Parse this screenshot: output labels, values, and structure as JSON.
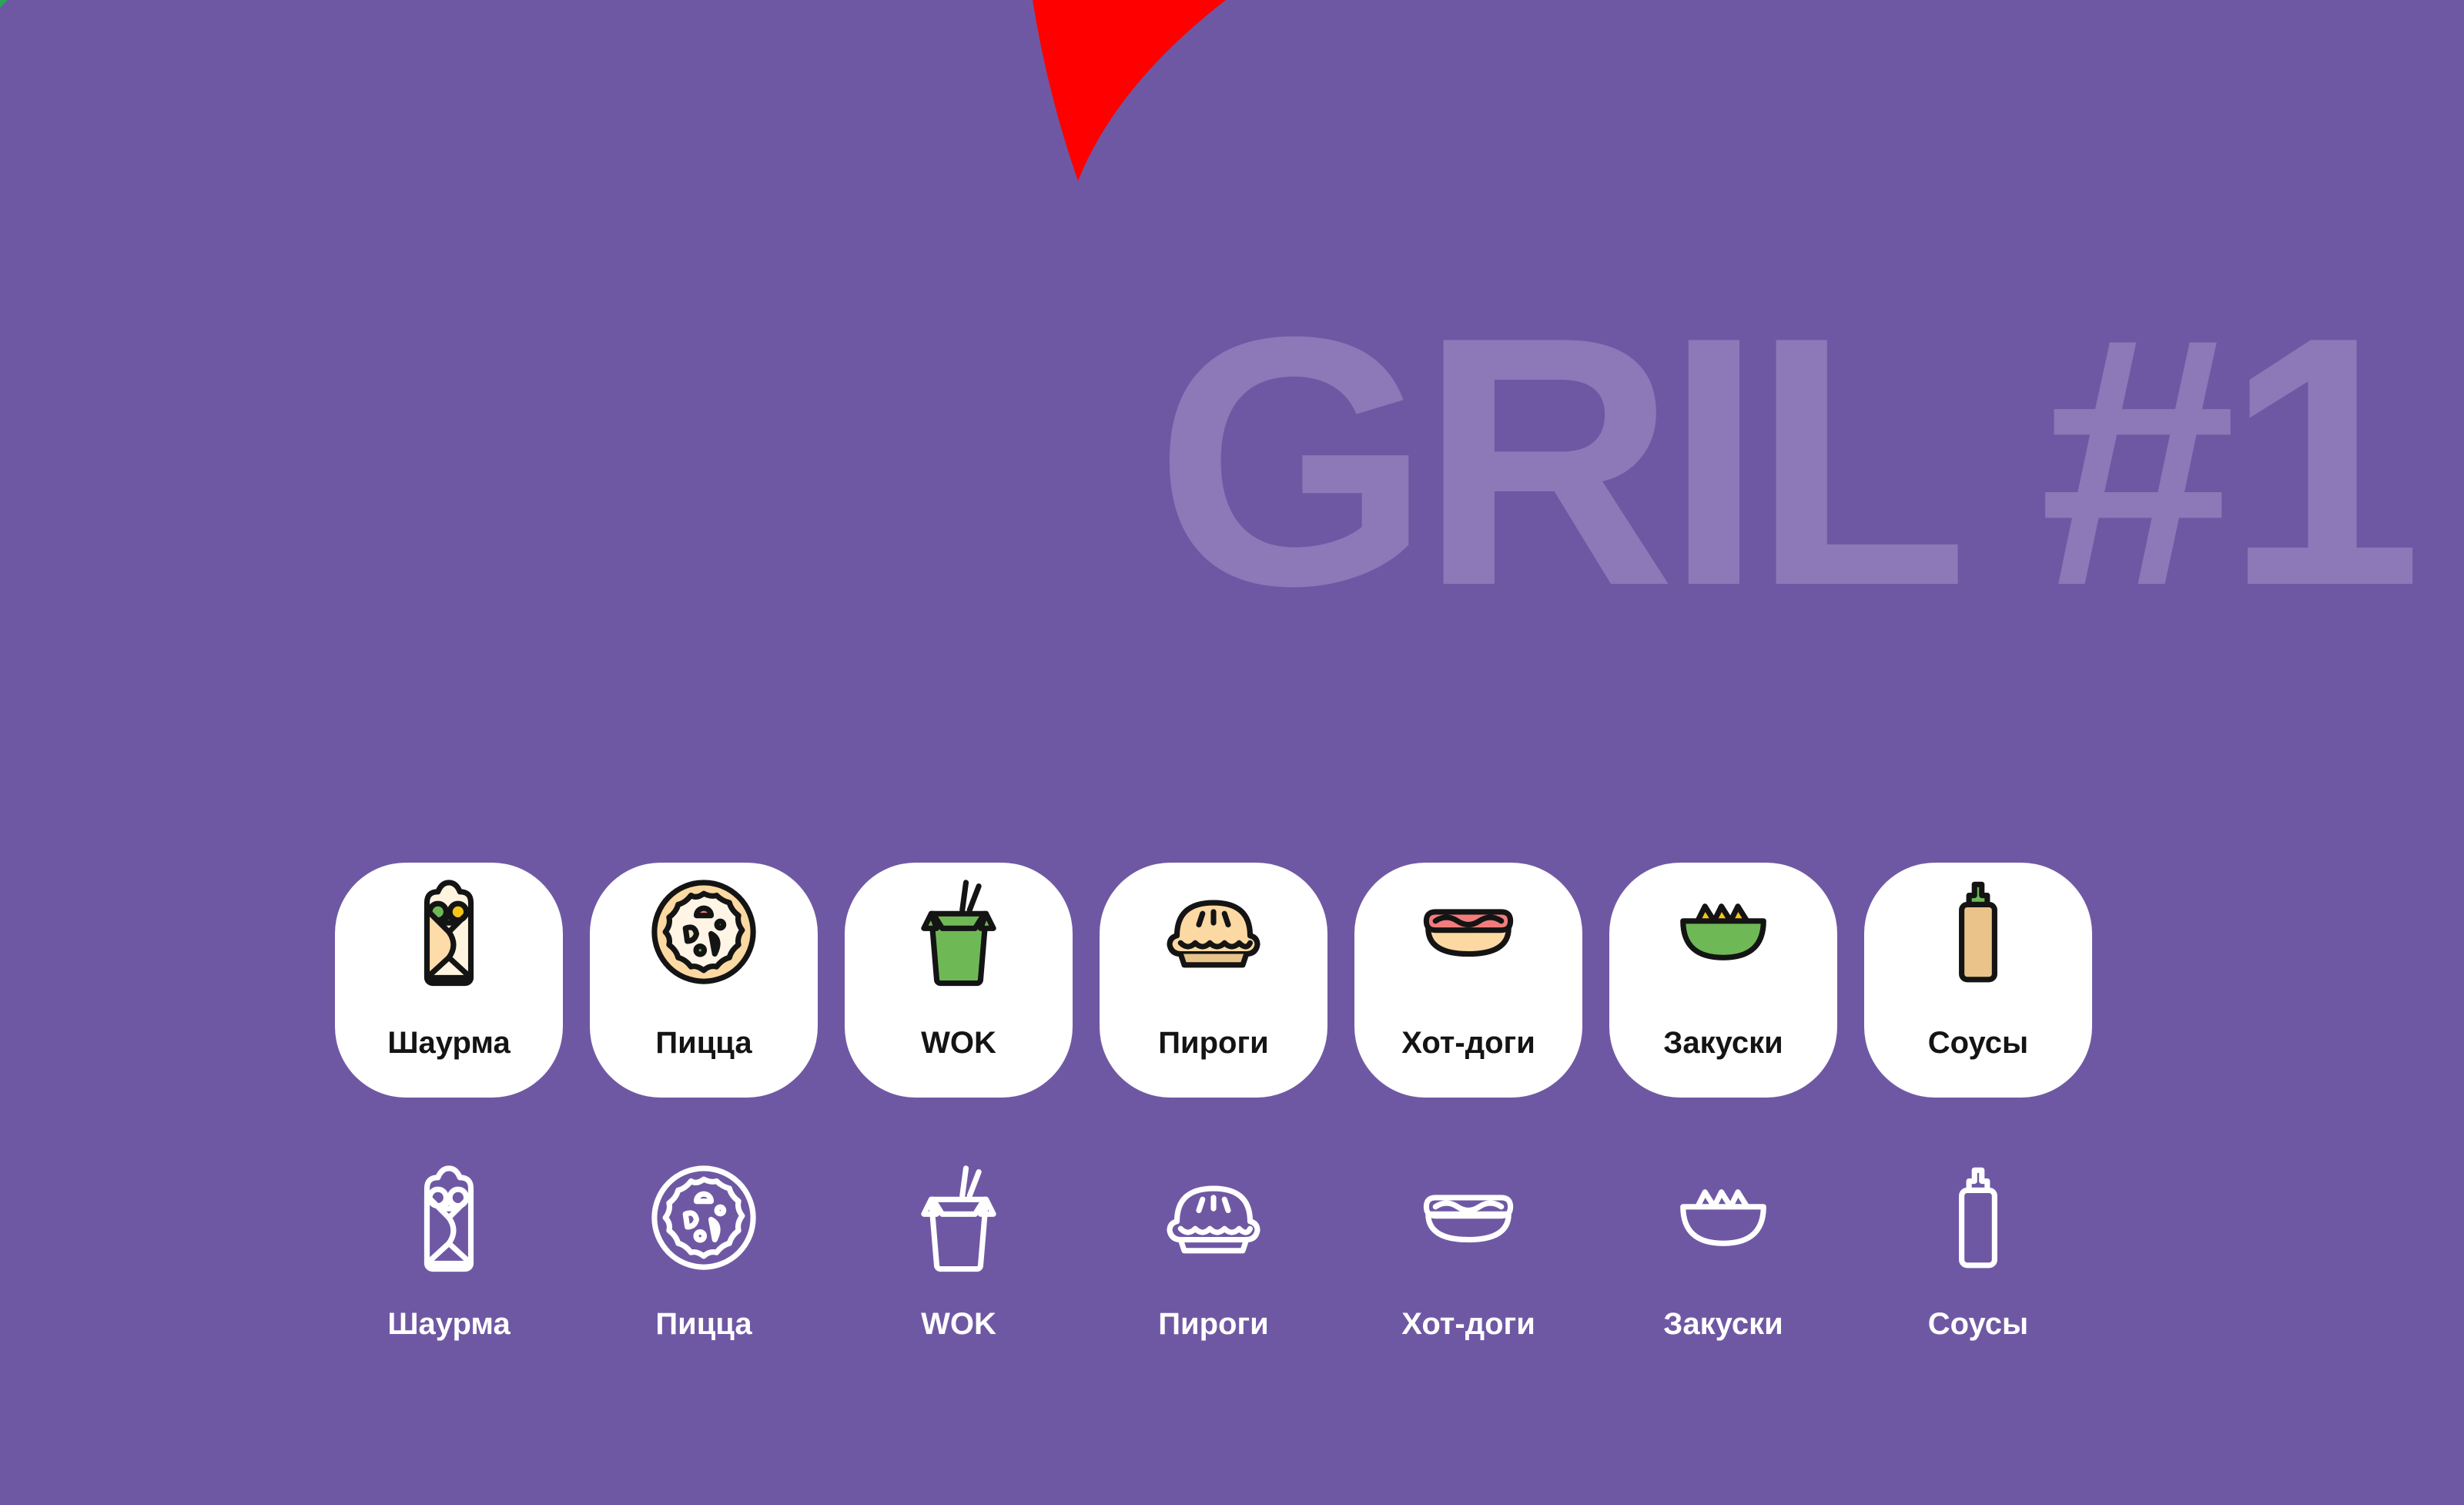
{
  "colors": {
    "background": "#6f58a3",
    "brand_text": "#8d78b8",
    "accent_red": "#ff0000",
    "accent_green": "#2aa55a",
    "card": "#ffffff"
  },
  "brand": {
    "title": "GRIL #1"
  },
  "categories": [
    {
      "label": "Шаурма",
      "icon": "shawarma-icon"
    },
    {
      "label": "Пицца",
      "icon": "pizza-icon"
    },
    {
      "label": "WOK",
      "icon": "wok-box-icon"
    },
    {
      "label": "Пироги",
      "icon": "pie-icon"
    },
    {
      "label": "Хот-доги",
      "icon": "hotdog-icon"
    },
    {
      "label": "Закуски",
      "icon": "snack-bowl-icon"
    },
    {
      "label": "Соусы",
      "icon": "sauce-bottle-icon"
    }
  ]
}
